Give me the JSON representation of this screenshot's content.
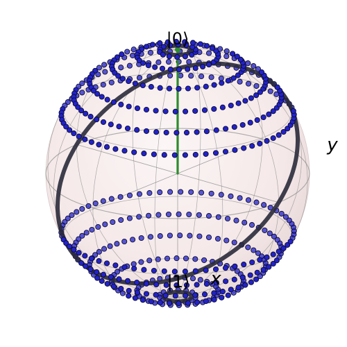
{
  "sphere": {
    "labels": {
      "zero": "|0⟩",
      "one": "|1⟩",
      "x": "x",
      "y": "y"
    },
    "colors": {
      "surface": "#f3e4e4",
      "wireframe": "#8c8c8c",
      "vector": "#2e8b2e",
      "point_fill": "#2323c8",
      "point_edge": "#0a0a33",
      "trajectory": "#2a2a3a"
    },
    "vector": {
      "theta_deg": 0,
      "phi_deg": 0
    },
    "point_rings": [
      {
        "theta_deg": 8,
        "count": 14
      },
      {
        "theta_deg": 18,
        "count": 30
      },
      {
        "theta_deg": 30,
        "count": 44
      },
      {
        "theta_deg": 42,
        "count": 56
      },
      {
        "theta_deg": 52,
        "count": 64
      },
      {
        "theta_deg": 62,
        "count": 70
      },
      {
        "theta_deg": 118,
        "count": 70
      },
      {
        "theta_deg": 128,
        "count": 64
      },
      {
        "theta_deg": 138,
        "count": 56
      },
      {
        "theta_deg": 150,
        "count": 44
      },
      {
        "theta_deg": 162,
        "count": 30
      },
      {
        "theta_deg": 172,
        "count": 14
      }
    ],
    "trajectories": [
      {
        "type": "tilted-great-circle",
        "tilt_deg": 40
      },
      {
        "type": "small-circle",
        "theta_deg": 6
      },
      {
        "type": "small-circle",
        "theta_deg": 174
      }
    ]
  }
}
